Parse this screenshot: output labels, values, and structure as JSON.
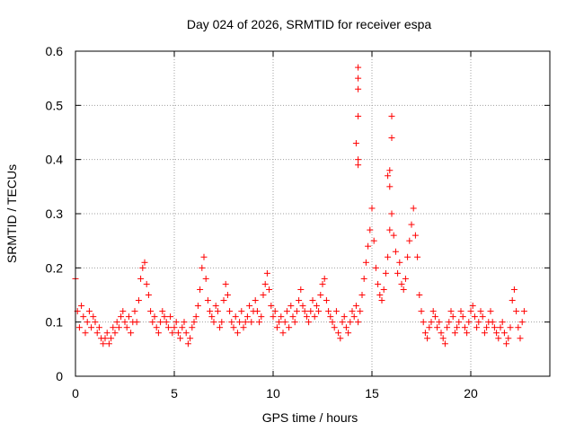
{
  "chart_data": {
    "type": "scatter",
    "title": "Day 024 of 2026, SRMTID for receiver espa",
    "xlabel": "GPS time / hours",
    "ylabel": "SRMTID / TECUs",
    "xlim": [
      0,
      24
    ],
    "ylim": [
      0,
      0.6
    ],
    "x_ticks": [
      0,
      5,
      10,
      15,
      20
    ],
    "y_ticks": [
      0,
      0.1,
      0.2,
      0.3,
      0.4,
      0.5,
      0.6
    ],
    "x_tick_labels": [
      "0",
      "5",
      "10",
      "15",
      "20"
    ],
    "y_tick_labels": [
      "0",
      "0.1",
      "0.2",
      "0.3",
      "0.4",
      "0.5",
      "0.6"
    ],
    "grid": true,
    "marker": "+",
    "color": "#ff0000",
    "series": [
      {
        "name": "SRMTID",
        "x": [
          0.0,
          0.1,
          0.2,
          0.3,
          0.4,
          0.5,
          0.6,
          0.7,
          0.8,
          0.9,
          1.0,
          1.1,
          1.2,
          1.3,
          1.4,
          1.5,
          1.6,
          1.7,
          1.8,
          1.9,
          2.0,
          2.1,
          2.2,
          2.3,
          2.4,
          2.5,
          2.6,
          2.7,
          2.8,
          2.9,
          3.0,
          3.1,
          3.2,
          3.3,
          3.4,
          3.5,
          3.6,
          3.7,
          3.8,
          3.9,
          4.0,
          4.1,
          4.2,
          4.3,
          4.4,
          4.5,
          4.6,
          4.7,
          4.8,
          4.9,
          5.0,
          5.1,
          5.2,
          5.3,
          5.4,
          5.5,
          5.6,
          5.7,
          5.8,
          5.9,
          6.0,
          6.1,
          6.2,
          6.3,
          6.4,
          6.5,
          6.6,
          6.7,
          6.8,
          6.9,
          7.0,
          7.1,
          7.2,
          7.3,
          7.4,
          7.5,
          7.6,
          7.7,
          7.8,
          7.9,
          8.0,
          8.1,
          8.2,
          8.3,
          8.4,
          8.5,
          8.6,
          8.7,
          8.8,
          8.9,
          9.0,
          9.1,
          9.2,
          9.3,
          9.4,
          9.5,
          9.6,
          9.7,
          9.8,
          9.9,
          10.0,
          10.1,
          10.2,
          10.3,
          10.4,
          10.5,
          10.6,
          10.7,
          10.8,
          10.9,
          11.0,
          11.1,
          11.2,
          11.3,
          11.4,
          11.5,
          11.6,
          11.7,
          11.8,
          11.9,
          12.0,
          12.1,
          12.2,
          12.3,
          12.4,
          12.5,
          12.6,
          12.7,
          12.8,
          12.9,
          13.0,
          13.1,
          13.2,
          13.3,
          13.4,
          13.5,
          13.6,
          13.7,
          13.8,
          13.9,
          14.0,
          14.1,
          14.2,
          14.3,
          14.4,
          14.5,
          14.6,
          14.7,
          14.8,
          14.9,
          15.0,
          15.1,
          15.2,
          15.3,
          15.4,
          15.5,
          15.6,
          15.7,
          15.8,
          15.9,
          16.0,
          16.1,
          16.2,
          16.3,
          16.4,
          16.5,
          16.6,
          16.7,
          16.8,
          16.9,
          17.0,
          17.1,
          17.2,
          17.3,
          17.4,
          17.5,
          17.6,
          17.7,
          17.8,
          17.9,
          18.0,
          18.1,
          18.2,
          18.3,
          18.4,
          18.5,
          18.6,
          18.7,
          18.8,
          18.9,
          19.0,
          19.1,
          19.2,
          19.3,
          19.4,
          19.5,
          19.6,
          19.7,
          19.8,
          19.9,
          20.0,
          20.1,
          20.2,
          20.3,
          20.4,
          20.5,
          20.6,
          20.7,
          20.8,
          20.9,
          21.0,
          21.1,
          21.2,
          21.3,
          21.4,
          21.5,
          21.6,
          21.7,
          21.8,
          21.9,
          22.0,
          22.1,
          22.2,
          22.3,
          22.4,
          22.5,
          22.6,
          22.7,
          14.3,
          14.3,
          14.3,
          14.3,
          14.2,
          16.0,
          16.0,
          15.9,
          15.9,
          14.3,
          14.3,
          15.8
        ],
        "y": [
          0.18,
          0.12,
          0.09,
          0.13,
          0.11,
          0.08,
          0.1,
          0.12,
          0.09,
          0.11,
          0.1,
          0.08,
          0.09,
          0.07,
          0.06,
          0.07,
          0.08,
          0.06,
          0.07,
          0.09,
          0.08,
          0.1,
          0.09,
          0.11,
          0.12,
          0.1,
          0.09,
          0.11,
          0.08,
          0.1,
          0.12,
          0.1,
          0.14,
          0.18,
          0.2,
          0.21,
          0.17,
          0.15,
          0.12,
          0.1,
          0.11,
          0.09,
          0.08,
          0.1,
          0.12,
          0.11,
          0.1,
          0.09,
          0.11,
          0.08,
          0.09,
          0.1,
          0.08,
          0.07,
          0.09,
          0.1,
          0.08,
          0.06,
          0.07,
          0.09,
          0.1,
          0.11,
          0.13,
          0.16,
          0.2,
          0.22,
          0.18,
          0.14,
          0.12,
          0.11,
          0.1,
          0.13,
          0.12,
          0.09,
          0.1,
          0.14,
          0.17,
          0.15,
          0.12,
          0.1,
          0.09,
          0.11,
          0.08,
          0.1,
          0.12,
          0.09,
          0.1,
          0.11,
          0.13,
          0.1,
          0.12,
          0.14,
          0.12,
          0.1,
          0.11,
          0.15,
          0.17,
          0.19,
          0.16,
          0.13,
          0.11,
          0.12,
          0.09,
          0.1,
          0.11,
          0.08,
          0.1,
          0.12,
          0.09,
          0.13,
          0.11,
          0.1,
          0.12,
          0.14,
          0.16,
          0.13,
          0.12,
          0.11,
          0.1,
          0.12,
          0.14,
          0.11,
          0.13,
          0.12,
          0.15,
          0.17,
          0.18,
          0.14,
          0.12,
          0.11,
          0.1,
          0.09,
          0.12,
          0.08,
          0.07,
          0.1,
          0.11,
          0.09,
          0.08,
          0.1,
          0.12,
          0.11,
          0.13,
          0.1,
          0.12,
          0.15,
          0.18,
          0.21,
          0.24,
          0.27,
          0.31,
          0.25,
          0.2,
          0.17,
          0.15,
          0.14,
          0.16,
          0.19,
          0.22,
          0.27,
          0.3,
          0.26,
          0.23,
          0.19,
          0.21,
          0.17,
          0.16,
          0.18,
          0.22,
          0.25,
          0.28,
          0.31,
          0.26,
          0.22,
          0.15,
          0.12,
          0.1,
          0.08,
          0.07,
          0.09,
          0.1,
          0.12,
          0.11,
          0.09,
          0.1,
          0.08,
          0.07,
          0.06,
          0.09,
          0.1,
          0.12,
          0.11,
          0.08,
          0.09,
          0.1,
          0.12,
          0.11,
          0.09,
          0.08,
          0.1,
          0.12,
          0.13,
          0.11,
          0.09,
          0.1,
          0.12,
          0.11,
          0.08,
          0.09,
          0.1,
          0.12,
          0.1,
          0.09,
          0.08,
          0.07,
          0.09,
          0.1,
          0.08,
          0.06,
          0.07,
          0.09,
          0.14,
          0.16,
          0.12,
          0.09,
          0.07,
          0.1,
          0.12,
          0.57,
          0.55,
          0.53,
          0.48,
          0.43,
          0.48,
          0.44,
          0.38,
          0.35,
          0.4,
          0.39,
          0.37
        ]
      }
    ]
  }
}
